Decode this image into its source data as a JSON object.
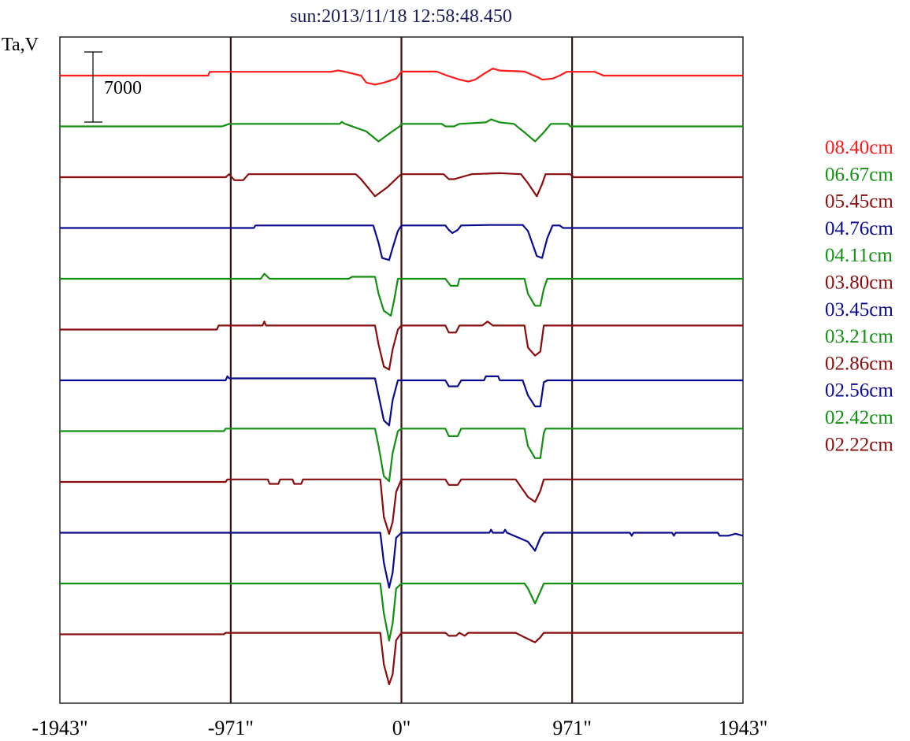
{
  "chart_data": {
    "type": "line",
    "title": "sun:2013/11/18 12:58:48.450",
    "ylabel": "Ta,V",
    "scale_bar_label": "7000",
    "scale_bar_value": 7000,
    "xlim": [
      -1943,
      1943
    ],
    "x_ticks": [
      {
        "value": -1943,
        "label": "-1943\""
      },
      {
        "value": -971,
        "label": "-971\""
      },
      {
        "value": 0,
        "label": "0\""
      },
      {
        "value": 971,
        "label": "971\""
      },
      {
        "value": 1943,
        "label": "1943\""
      }
    ],
    "vertical_lines": [
      -971,
      0,
      971
    ],
    "colors": {
      "red": "#ff1a1a",
      "green": "#119011",
      "maroon": "#8b0c0c",
      "blue": "#0a0a90",
      "frame": "#000000",
      "vline": "#3a1010",
      "title": "#1c1c5c"
    },
    "legend_placement": "right",
    "legend": [
      {
        "label": "08.40cm",
        "color": "#ff1a1a"
      },
      {
        "label": "06.67cm",
        "color": "#119011"
      },
      {
        "label": "05.45cm",
        "color": "#8b0c0c"
      },
      {
        "label": "04.76cm",
        "color": "#0a0a90"
      },
      {
        "label": "04.11cm",
        "color": "#119011"
      },
      {
        "label": "03.80cm",
        "color": "#8b0c0c"
      },
      {
        "label": "03.45cm",
        "color": "#0a0a90"
      },
      {
        "label": "03.21cm",
        "color": "#119011"
      },
      {
        "label": "02.86cm",
        "color": "#8b0c0c"
      },
      {
        "label": "02.56cm",
        "color": "#0a0a90"
      },
      {
        "label": "02.42cm",
        "color": "#119011"
      },
      {
        "label": "02.22cm",
        "color": "#8b0c0c"
      }
    ],
    "series": [
      {
        "name": "08.40cm",
        "color": "#ff1a1a",
        "points": [
          [
            -1943,
            0
          ],
          [
            -1100,
            0
          ],
          [
            -1090,
            380
          ],
          [
            -400,
            380
          ],
          [
            -360,
            520
          ],
          [
            -320,
            380
          ],
          [
            -230,
            0
          ],
          [
            -200,
            -700
          ],
          [
            -150,
            -900
          ],
          [
            -100,
            -700
          ],
          [
            -30,
            -300
          ],
          [
            0,
            400
          ],
          [
            200,
            400
          ],
          [
            260,
            0
          ],
          [
            330,
            -400
          ],
          [
            380,
            -600
          ],
          [
            420,
            -400
          ],
          [
            480,
            300
          ],
          [
            520,
            700
          ],
          [
            560,
            500
          ],
          [
            700,
            400
          ],
          [
            780,
            -200
          ],
          [
            800,
            -400
          ],
          [
            860,
            -300
          ],
          [
            900,
            0
          ],
          [
            940,
            380
          ],
          [
            1100,
            380
          ],
          [
            1150,
            0
          ],
          [
            1943,
            0
          ]
        ]
      },
      {
        "name": "06.67cm",
        "color": "#119011",
        "points": [
          [
            -1943,
            0
          ],
          [
            -1020,
            0
          ],
          [
            -980,
            250
          ],
          [
            -350,
            250
          ],
          [
            -340,
            450
          ],
          [
            -320,
            250
          ],
          [
            -200,
            -500
          ],
          [
            -130,
            -1500
          ],
          [
            -60,
            -600
          ],
          [
            -10,
            0
          ],
          [
            0,
            250
          ],
          [
            230,
            250
          ],
          [
            250,
            0
          ],
          [
            300,
            0
          ],
          [
            330,
            250
          ],
          [
            480,
            400
          ],
          [
            510,
            700
          ],
          [
            560,
            400
          ],
          [
            640,
            250
          ],
          [
            700,
            -600
          ],
          [
            760,
            -1500
          ],
          [
            810,
            -600
          ],
          [
            850,
            250
          ],
          [
            950,
            250
          ],
          [
            960,
            0
          ],
          [
            1943,
            0
          ]
        ]
      },
      {
        "name": "05.45cm",
        "color": "#8b0c0c",
        "points": [
          [
            -1943,
            0
          ],
          [
            -1000,
            0
          ],
          [
            -980,
            300
          ],
          [
            -950,
            -300
          ],
          [
            -900,
            -300
          ],
          [
            -870,
            300
          ],
          [
            -260,
            300
          ],
          [
            -230,
            -200
          ],
          [
            -150,
            -1900
          ],
          [
            -80,
            -1000
          ],
          [
            -20,
            0
          ],
          [
            0,
            300
          ],
          [
            240,
            300
          ],
          [
            270,
            -200
          ],
          [
            300,
            -200
          ],
          [
            400,
            300
          ],
          [
            560,
            400
          ],
          [
            680,
            300
          ],
          [
            720,
            -600
          ],
          [
            770,
            -1900
          ],
          [
            800,
            -700
          ],
          [
            820,
            300
          ],
          [
            960,
            300
          ],
          [
            980,
            0
          ],
          [
            1943,
            0
          ]
        ]
      },
      {
        "name": "04.76cm",
        "color": "#0a0a90",
        "points": [
          [
            -1943,
            0
          ],
          [
            -840,
            0
          ],
          [
            -830,
            250
          ],
          [
            -160,
            250
          ],
          [
            -130,
            -1500
          ],
          [
            -110,
            -3000
          ],
          [
            -70,
            -3200
          ],
          [
            -50,
            -2000
          ],
          [
            -20,
            -300
          ],
          [
            0,
            250
          ],
          [
            250,
            250
          ],
          [
            270,
            -200
          ],
          [
            290,
            -500
          ],
          [
            320,
            -200
          ],
          [
            340,
            250
          ],
          [
            500,
            300
          ],
          [
            690,
            300
          ],
          [
            720,
            -300
          ],
          [
            770,
            -2800
          ],
          [
            800,
            -3000
          ],
          [
            830,
            -1000
          ],
          [
            860,
            250
          ],
          [
            900,
            250
          ],
          [
            920,
            0
          ],
          [
            1943,
            0
          ]
        ]
      },
      {
        "name": "04.11cm",
        "color": "#119011",
        "points": [
          [
            -1943,
            0
          ],
          [
            -800,
            0
          ],
          [
            -780,
            500
          ],
          [
            -750,
            0
          ],
          [
            -300,
            0
          ],
          [
            -280,
            200
          ],
          [
            -150,
            200
          ],
          [
            -130,
            -1500
          ],
          [
            -100,
            -3200
          ],
          [
            -60,
            -3700
          ],
          [
            -40,
            -2000
          ],
          [
            -20,
            0
          ],
          [
            250,
            0
          ],
          [
            280,
            -700
          ],
          [
            320,
            -700
          ],
          [
            330,
            0
          ],
          [
            700,
            0
          ],
          [
            720,
            -1500
          ],
          [
            760,
            -2700
          ],
          [
            790,
            -2700
          ],
          [
            810,
            -1000
          ],
          [
            830,
            0
          ],
          [
            1943,
            0
          ]
        ]
      },
      {
        "name": "03.80cm",
        "color": "#8b0c0c",
        "points": [
          [
            -1943,
            0
          ],
          [
            -1050,
            0
          ],
          [
            -1040,
            400
          ],
          [
            -790,
            400
          ],
          [
            -780,
            800
          ],
          [
            -770,
            400
          ],
          [
            -150,
            400
          ],
          [
            -130,
            -1500
          ],
          [
            -100,
            -3700
          ],
          [
            -70,
            -4000
          ],
          [
            -50,
            -2000
          ],
          [
            -20,
            0
          ],
          [
            0,
            400
          ],
          [
            250,
            400
          ],
          [
            270,
            -300
          ],
          [
            310,
            -300
          ],
          [
            330,
            400
          ],
          [
            460,
            400
          ],
          [
            490,
            800
          ],
          [
            520,
            400
          ],
          [
            700,
            400
          ],
          [
            720,
            -1800
          ],
          [
            760,
            -2600
          ],
          [
            790,
            -2200
          ],
          [
            810,
            400
          ],
          [
            1943,
            400
          ]
        ]
      },
      {
        "name": "03.45cm",
        "color": "#0a0a90",
        "points": [
          [
            -1943,
            0
          ],
          [
            -1000,
            0
          ],
          [
            -990,
            400
          ],
          [
            -980,
            200
          ],
          [
            -150,
            200
          ],
          [
            -130,
            -1500
          ],
          [
            -100,
            -4000
          ],
          [
            -70,
            -4500
          ],
          [
            -50,
            -2000
          ],
          [
            -20,
            0
          ],
          [
            250,
            0
          ],
          [
            270,
            -600
          ],
          [
            320,
            -600
          ],
          [
            340,
            0
          ],
          [
            470,
            0
          ],
          [
            480,
            400
          ],
          [
            550,
            400
          ],
          [
            560,
            0
          ],
          [
            690,
            0
          ],
          [
            720,
            -1500
          ],
          [
            760,
            -2600
          ],
          [
            790,
            -2600
          ],
          [
            810,
            -200
          ],
          [
            830,
            0
          ],
          [
            1943,
            0
          ]
        ]
      },
      {
        "name": "03.21cm",
        "color": "#119011",
        "points": [
          [
            -1943,
            0
          ],
          [
            -1010,
            0
          ],
          [
            -1000,
            250
          ],
          [
            -150,
            250
          ],
          [
            -130,
            -1500
          ],
          [
            -100,
            -4500
          ],
          [
            -70,
            -5000
          ],
          [
            -50,
            -2200
          ],
          [
            -20,
            0
          ],
          [
            0,
            250
          ],
          [
            250,
            250
          ],
          [
            270,
            -500
          ],
          [
            320,
            -500
          ],
          [
            340,
            250
          ],
          [
            700,
            250
          ],
          [
            720,
            -1500
          ],
          [
            760,
            -2700
          ],
          [
            790,
            -2700
          ],
          [
            810,
            -200
          ],
          [
            820,
            250
          ],
          [
            1943,
            250
          ]
        ]
      },
      {
        "name": "02.86cm",
        "color": "#8b0c0c",
        "points": [
          [
            -1943,
            0
          ],
          [
            -1000,
            0
          ],
          [
            -990,
            250
          ],
          [
            -760,
            250
          ],
          [
            -750,
            -200
          ],
          [
            -700,
            -200
          ],
          [
            -690,
            250
          ],
          [
            -620,
            250
          ],
          [
            -610,
            -200
          ],
          [
            -570,
            -200
          ],
          [
            -560,
            250
          ],
          [
            -120,
            250
          ],
          [
            -100,
            -3500
          ],
          [
            -70,
            -5200
          ],
          [
            -50,
            -4000
          ],
          [
            -30,
            -1000
          ],
          [
            0,
            250
          ],
          [
            250,
            250
          ],
          [
            270,
            -300
          ],
          [
            320,
            -300
          ],
          [
            340,
            250
          ],
          [
            650,
            250
          ],
          [
            680,
            -500
          ],
          [
            720,
            -1500
          ],
          [
            760,
            -2000
          ],
          [
            790,
            -900
          ],
          [
            810,
            250
          ],
          [
            1943,
            250
          ]
        ]
      },
      {
        "name": "02.56cm",
        "color": "#0a0a90",
        "points": [
          [
            -1943,
            0
          ],
          [
            -120,
            0
          ],
          [
            -100,
            -3000
          ],
          [
            -70,
            -5500
          ],
          [
            -50,
            -4000
          ],
          [
            -30,
            -500
          ],
          [
            0,
            0
          ],
          [
            500,
            0
          ],
          [
            510,
            300
          ],
          [
            520,
            0
          ],
          [
            580,
            0
          ],
          [
            590,
            300
          ],
          [
            600,
            0
          ],
          [
            720,
            -900
          ],
          [
            760,
            -1800
          ],
          [
            790,
            -500
          ],
          [
            810,
            0
          ],
          [
            1300,
            0
          ],
          [
            1310,
            -300
          ],
          [
            1320,
            0
          ],
          [
            1540,
            0
          ],
          [
            1550,
            -300
          ],
          [
            1560,
            0
          ],
          [
            1800,
            0
          ],
          [
            1810,
            -300
          ],
          [
            1860,
            -300
          ],
          [
            1900,
            -100
          ],
          [
            1943,
            -300
          ]
        ]
      },
      {
        "name": "02.42cm",
        "color": "#119011",
        "points": [
          [
            -1943,
            0
          ],
          [
            -120,
            0
          ],
          [
            -100,
            -3000
          ],
          [
            -70,
            -5700
          ],
          [
            -50,
            -4000
          ],
          [
            -30,
            -500
          ],
          [
            0,
            0
          ],
          [
            700,
            0
          ],
          [
            720,
            -500
          ],
          [
            760,
            -2000
          ],
          [
            790,
            -800
          ],
          [
            810,
            0
          ],
          [
            1943,
            0
          ]
        ]
      },
      {
        "name": "02.22cm",
        "color": "#8b0c0c",
        "points": [
          [
            -1943,
            0
          ],
          [
            -1010,
            0
          ],
          [
            -1000,
            150
          ],
          [
            -120,
            150
          ],
          [
            -100,
            -3000
          ],
          [
            -70,
            -5000
          ],
          [
            -50,
            -4000
          ],
          [
            -30,
            -600
          ],
          [
            0,
            150
          ],
          [
            250,
            150
          ],
          [
            270,
            -150
          ],
          [
            310,
            -150
          ],
          [
            330,
            150
          ],
          [
            360,
            -150
          ],
          [
            380,
            150
          ],
          [
            650,
            150
          ],
          [
            700,
            -300
          ],
          [
            760,
            -800
          ],
          [
            790,
            -300
          ],
          [
            810,
            150
          ],
          [
            1943,
            150
          ]
        ]
      }
    ]
  }
}
